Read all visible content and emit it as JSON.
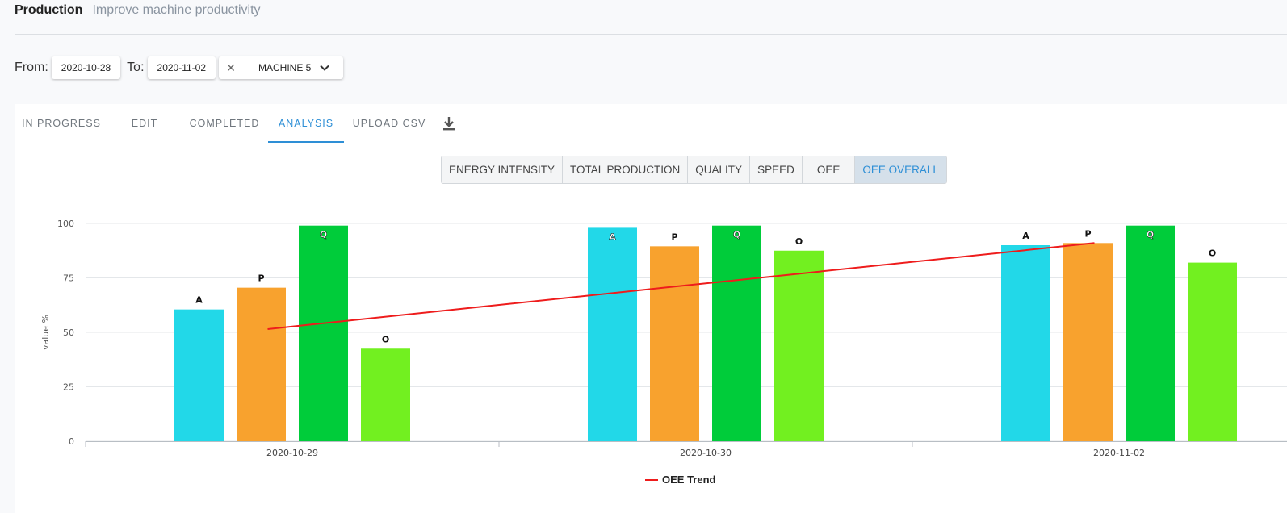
{
  "header": {
    "title": "Production",
    "subtitle": "Improve machine productivity"
  },
  "filters": {
    "from_label": "From:",
    "from_date": "2020-10-28",
    "to_label": "To:",
    "to_date": "2020-11-02",
    "clear_icon": "close-icon",
    "machine": "MACHINE 5",
    "dropdown_icon": "chevron-down-icon"
  },
  "tabs": [
    {
      "label": "IN PROGRESS",
      "active": false
    },
    {
      "label": "EDIT",
      "active": false
    },
    {
      "label": "COMPLETED",
      "active": false
    },
    {
      "label": "ANALYSIS",
      "active": true
    },
    {
      "label": "UPLOAD CSV",
      "active": false
    }
  ],
  "download_icon": "download-icon",
  "metrics": [
    {
      "label": "ENERGY INTENSITY",
      "active": false
    },
    {
      "label": "TOTAL PRODUCTION",
      "active": false
    },
    {
      "label": "QUALITY",
      "active": false
    },
    {
      "label": "SPEED",
      "active": false
    },
    {
      "label": "OEE",
      "active": false
    },
    {
      "label": "OEE OVERALL",
      "active": true
    }
  ],
  "colors": {
    "accent": "#2e8fd6",
    "A": "#22d8e8",
    "P": "#f8a22e",
    "Q": "#00cc3a",
    "O": "#72f020",
    "trend": "#ee1c1c"
  },
  "chart_data": {
    "type": "bar",
    "categories": [
      "2020-10-29",
      "2020-10-30",
      "2020-11-02"
    ],
    "ylabel": "value %",
    "ylim": [
      0,
      100
    ],
    "yticks": [
      0,
      25,
      50,
      75,
      100
    ],
    "grid": true,
    "series": [
      {
        "label": "A",
        "values": [
          60.5,
          98,
          90
        ]
      },
      {
        "label": "P",
        "values": [
          70.5,
          89.5,
          91
        ]
      },
      {
        "label": "Q",
        "values": [
          99,
          99,
          99
        ]
      },
      {
        "label": "O",
        "values": [
          42.5,
          87.5,
          82
        ]
      }
    ],
    "trend": {
      "name": "OEE Trend",
      "values": [
        51.5,
        71,
        91
      ]
    },
    "legend_position": "bottom"
  }
}
